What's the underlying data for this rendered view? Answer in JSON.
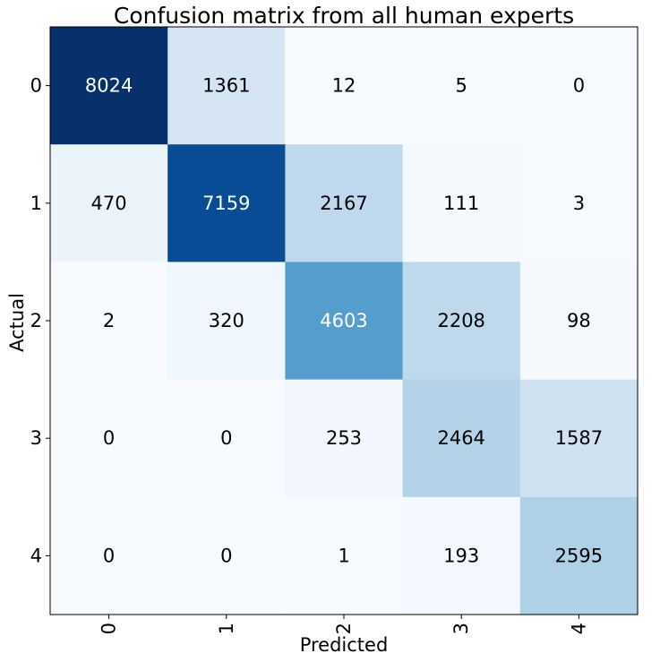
{
  "chart_data": {
    "type": "heatmap",
    "title": "Confusion matrix from all human experts",
    "xlabel": "Predicted",
    "ylabel": "Actual",
    "x_categories": [
      "0",
      "1",
      "2",
      "3",
      "4"
    ],
    "y_categories": [
      "0",
      "1",
      "2",
      "3",
      "4"
    ],
    "values": [
      [
        8024,
        1361,
        12,
        5,
        0
      ],
      [
        470,
        7159,
        2167,
        111,
        3
      ],
      [
        2,
        320,
        4603,
        2208,
        98
      ],
      [
        0,
        0,
        253,
        2464,
        1587
      ],
      [
        0,
        0,
        1,
        193,
        2595
      ]
    ],
    "colormap": "Blues",
    "value_range": [
      0,
      8024
    ],
    "grid": false,
    "legend": "none"
  }
}
